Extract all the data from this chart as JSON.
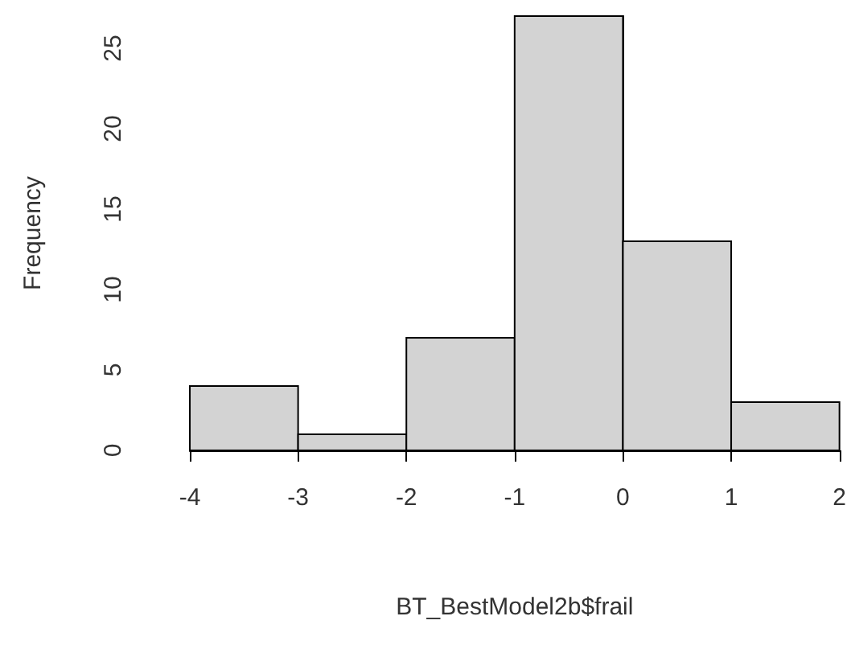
{
  "chart_data": {
    "type": "histogram",
    "xlabel": "BT_BestModel2b$frail",
    "ylabel": "Frequency",
    "bins": [
      -4,
      -3,
      -2,
      -1,
      0,
      1,
      2
    ],
    "values": [
      4,
      1,
      7,
      27,
      13,
      3
    ],
    "color": "#d3d3d3",
    "xlim": [
      -4,
      2
    ],
    "xticks": [
      -4,
      -3,
      -2,
      -1,
      0,
      1,
      2
    ],
    "ylim": [
      0,
      27
    ],
    "yticks": [
      0,
      5,
      10,
      15,
      20,
      25
    ]
  }
}
